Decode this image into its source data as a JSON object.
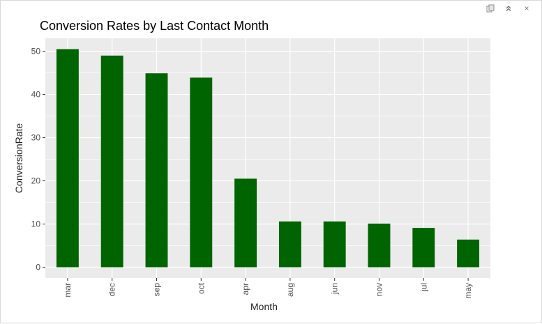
{
  "toolbar": {
    "icons": [
      "copy-icon",
      "collapse-up-icon",
      "close-icon"
    ],
    "close_glyph": "×"
  },
  "chart_data": {
    "type": "bar",
    "title": "Conversion Rates by Last Contact Month",
    "xlabel": "Month",
    "ylabel": "ConversionRate",
    "categories": [
      "mar",
      "dec",
      "sep",
      "oct",
      "apr",
      "aug",
      "jun",
      "nov",
      "jul",
      "may"
    ],
    "values": [
      50.5,
      49.0,
      44.9,
      43.9,
      20.5,
      10.6,
      10.6,
      10.1,
      9.1,
      6.4
    ],
    "yticks": [
      0,
      10,
      20,
      30,
      40,
      50
    ],
    "ylim": [
      -2.5,
      53
    ],
    "bar_color": "#006400",
    "panel_background": "#EBEBEB",
    "grid": true,
    "x_tick_label_rotation": "vertical"
  }
}
